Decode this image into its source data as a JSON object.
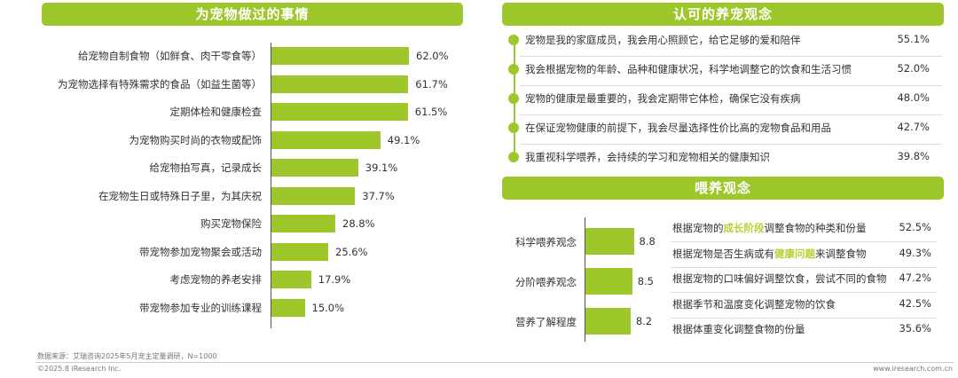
{
  "colors": {
    "accent": "#9dc72a",
    "highlight": "#b4d335"
  },
  "left": {
    "title": "为宠物做过的事情",
    "chart_data": {
      "type": "bar",
      "orientation": "horizontal",
      "categories": [
        "给宠物自制食物（如鲜食、肉干零食等）",
        "为宠物选择有特殊需求的食品（如益生菌等）",
        "定期体检和健康检查",
        "为宠物购买时尚的衣物或配饰",
        "给宠物拍写真，记录成长",
        "在宠物生日或特殊日子里，为其庆祝",
        "购买宠物保险",
        "带宠物参加宠物聚会或活动",
        "考虑宠物的养老安排",
        "带宠物参加专业的训练课程"
      ],
      "values": [
        62.0,
        61.7,
        61.5,
        49.1,
        39.1,
        37.7,
        28.8,
        25.6,
        17.9,
        15.0
      ],
      "value_labels": [
        "62.0%",
        "61.7%",
        "61.5%",
        "49.1%",
        "39.1%",
        "37.7%",
        "28.8%",
        "25.6%",
        "17.9%",
        "15.0%"
      ],
      "title": "为宠物做过的事情"
    }
  },
  "concepts": {
    "title": "认可的养宠观念",
    "items": [
      {
        "text": "宠物是我的家庭成员，我会用心照顾它，给它足够的爱和陪伴",
        "value": "55.1%"
      },
      {
        "text": "我会根据宠物的年龄、品种和健康状况，科学地调整它的饮食和生活习惯",
        "value": "52.0%"
      },
      {
        "text": "宠物的健康是最重要的，我会定期带它体检，确保它没有疾病",
        "value": "48.0%"
      },
      {
        "text": "在保证宠物健康的前提下，我会尽量选择性价比高的宠物食品和用品",
        "value": "42.7%"
      },
      {
        "text": "我重视科学喂养，会持续的学习和宠物相关的健康知识",
        "value": "39.8%"
      }
    ]
  },
  "feeding": {
    "title": "喂养观念",
    "chart_data": {
      "type": "bar",
      "orientation": "horizontal",
      "categories": [
        "科学喂养观念",
        "分阶喂养观念",
        "营养了解程度"
      ],
      "values": [
        8.8,
        8.5,
        8.2
      ],
      "value_labels": [
        "8.8",
        "8.5",
        "8.2"
      ]
    },
    "items": [
      {
        "pre": "根据宠物的",
        "hl": "成长阶段",
        "post": "调整食物的种类和份量",
        "value": "52.5%"
      },
      {
        "pre": "根据宠物是否生病或有",
        "hl": "健康问题",
        "post": "来调整食物",
        "value": "49.3%"
      },
      {
        "pre": "根据宠物的口味偏好调整饮食，尝试不同的食物",
        "hl": "",
        "post": "",
        "value": "47.2%"
      },
      {
        "pre": "根据季节和温度变化调整宠物的饮食",
        "hl": "",
        "post": "",
        "value": "42.5%"
      },
      {
        "pre": "根据体重变化调整食物的份量",
        "hl": "",
        "post": "",
        "value": "35.6%"
      }
    ]
  },
  "footer": {
    "source": "数据来源：艾瑞咨询2025年5月宠主定量调研，N=1000",
    "copyright": "©2025.8 iResearch Inc.",
    "website": "www.iresearch.com.cn"
  }
}
